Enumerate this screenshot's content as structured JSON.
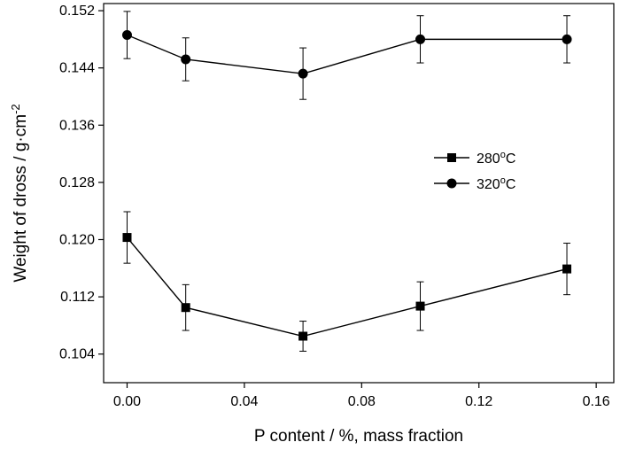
{
  "chart_data": {
    "type": "line",
    "xlabel": "P content / %, mass fraction",
    "ylabel": "Weight of dross / g·cm",
    "ylabel_sup": "-2",
    "xlim": [
      -0.008,
      0.166
    ],
    "ylim": [
      0.1,
      0.153
    ],
    "x_ticks": [
      "0.00",
      "0.04",
      "0.08",
      "0.12",
      "0.16"
    ],
    "y_ticks": [
      "0.104",
      "0.112",
      "0.120",
      "0.128",
      "0.136",
      "0.144",
      "0.152"
    ],
    "legend_position": "center-right",
    "series": [
      {
        "name": "280",
        "name_sup": "o",
        "name_suffix": "C",
        "marker": "square",
        "x": [
          0.0,
          0.02,
          0.06,
          0.1,
          0.15
        ],
        "values": [
          0.1203,
          0.1105,
          0.1065,
          0.1107,
          0.1159
        ],
        "error": [
          0.0036,
          0.0032,
          0.0021,
          0.0034,
          0.0036
        ]
      },
      {
        "name": "320",
        "name_sup": "o",
        "name_suffix": "C",
        "marker": "circle",
        "x": [
          0.0,
          0.02,
          0.06,
          0.1,
          0.15
        ],
        "values": [
          0.1486,
          0.1452,
          0.1432,
          0.148,
          0.148
        ],
        "error": [
          0.0033,
          0.003,
          0.0036,
          0.0033,
          0.0033
        ]
      }
    ]
  }
}
